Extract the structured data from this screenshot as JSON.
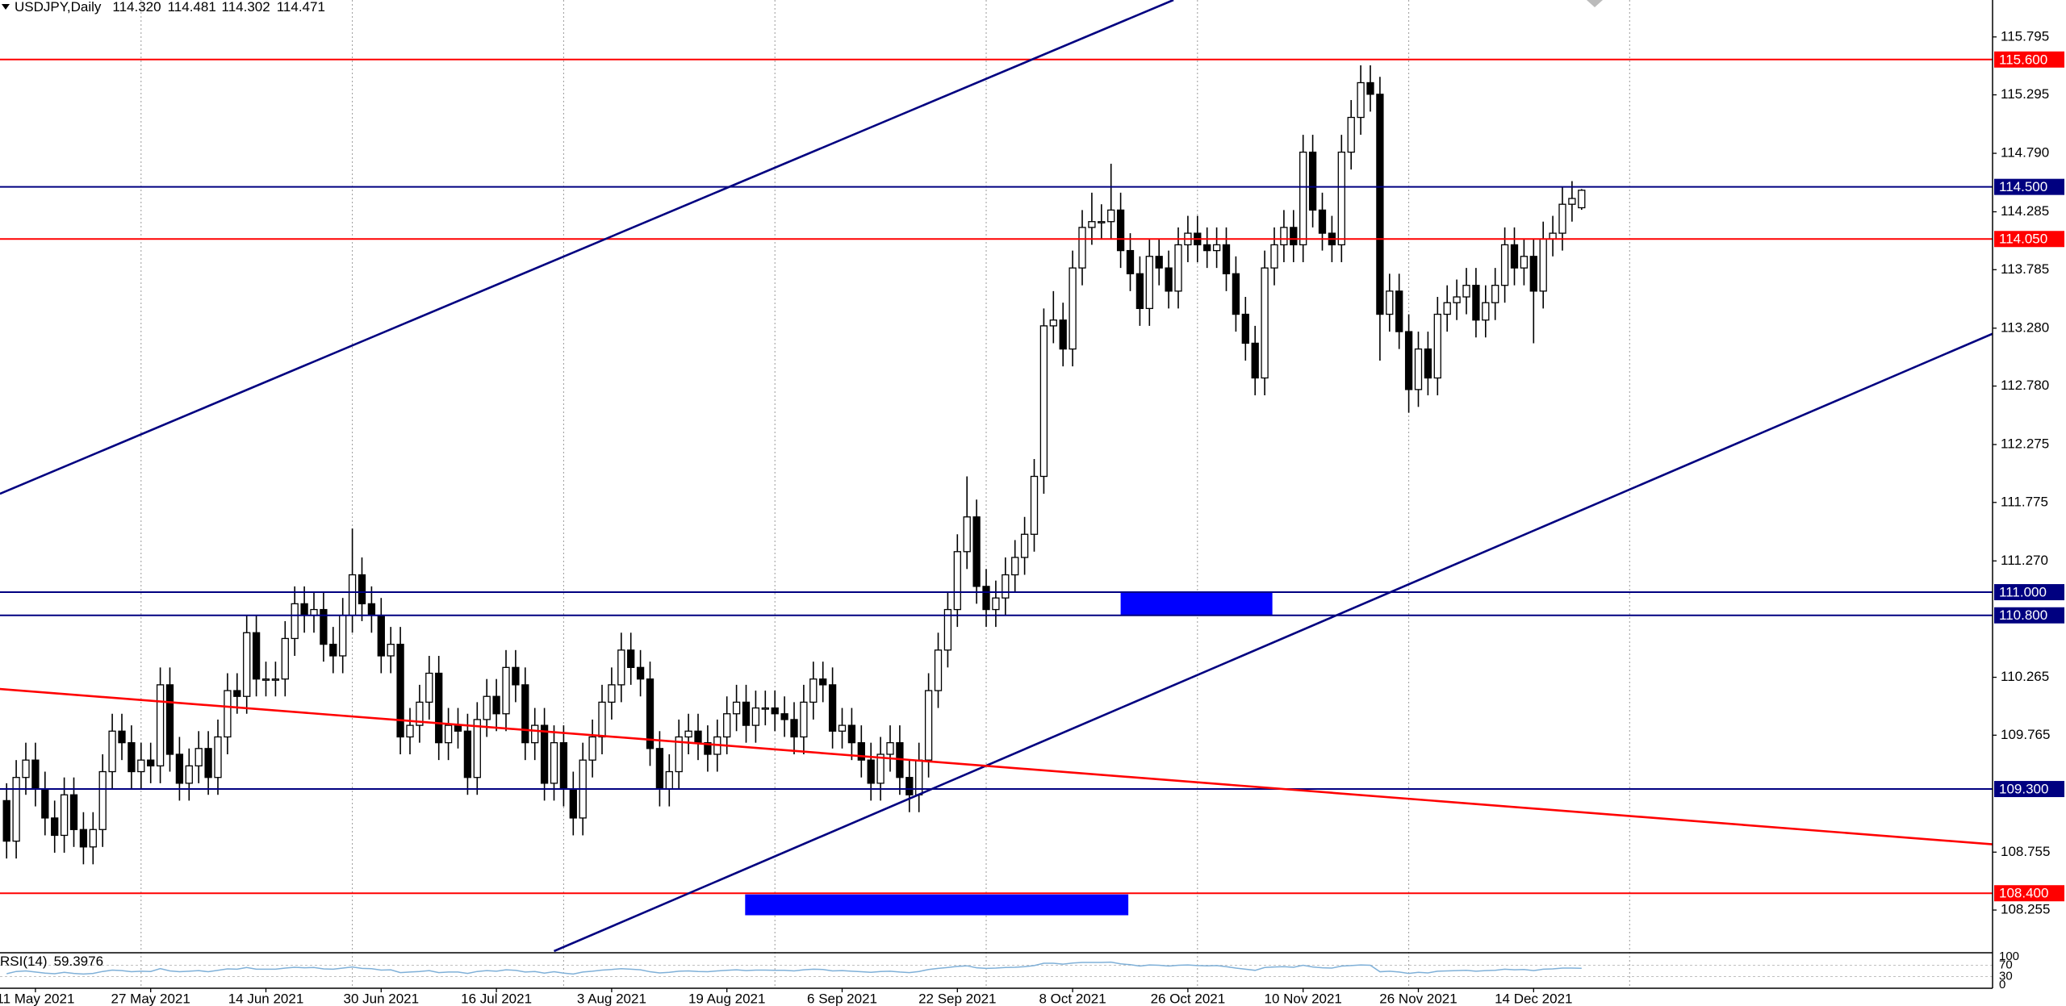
{
  "chart_data": [
    {
      "type": "candlestick",
      "title": "USDJPY,Daily",
      "ohlc_label": [
        "114.320",
        "114.481",
        "114.302",
        "114.471"
      ],
      "categories": [
        null,
        null,
        null,
        "11 May 2021",
        null,
        null,
        null,
        null,
        null,
        null,
        null,
        null,
        null,
        null,
        null,
        "27 May 2021",
        null,
        null,
        null,
        null,
        null,
        null,
        null,
        null,
        null,
        null,
        null,
        "14 Jun 2021",
        null,
        null,
        null,
        null,
        null,
        null,
        null,
        null,
        null,
        null,
        null,
        "30 Jun 2021",
        null,
        null,
        null,
        null,
        null,
        null,
        null,
        null,
        null,
        null,
        null,
        "16 Jul 2021",
        null,
        null,
        null,
        null,
        null,
        null,
        null,
        null,
        null,
        null,
        null,
        "3 Aug 2021",
        null,
        null,
        null,
        null,
        null,
        null,
        null,
        null,
        null,
        null,
        null,
        "19 Aug 2021",
        null,
        null,
        null,
        null,
        null,
        null,
        null,
        null,
        null,
        null,
        null,
        "6 Sep 2021",
        null,
        null,
        null,
        null,
        null,
        null,
        null,
        null,
        null,
        null,
        null,
        "22 Sep 2021",
        null,
        null,
        null,
        null,
        null,
        null,
        null,
        null,
        null,
        null,
        null,
        "8 Oct 2021",
        null,
        null,
        null,
        null,
        null,
        null,
        null,
        null,
        null,
        null,
        null,
        "26 Oct 2021",
        null,
        null,
        null,
        null,
        null,
        null,
        null,
        null,
        null,
        null,
        null,
        "10 Nov 2021",
        null,
        null,
        null,
        null,
        null,
        null,
        null,
        null,
        null,
        null,
        null,
        "26 Nov 2021",
        null,
        null,
        null,
        null,
        null,
        null,
        null,
        null,
        null,
        null,
        null,
        "14 Dec 2021",
        null,
        null,
        null,
        null,
        null
      ],
      "open": [
        109.2,
        108.85,
        109.4,
        109.55,
        109.3,
        109.05,
        108.9,
        109.25,
        108.95,
        108.8,
        108.95,
        109.45,
        109.8,
        109.7,
        109.45,
        109.55,
        109.5,
        110.2,
        109.6,
        109.35,
        109.5,
        109.65,
        109.4,
        109.75,
        110.15,
        110.1,
        110.65,
        110.25,
        110.25,
        110.25,
        110.6,
        110.9,
        110.8,
        110.85,
        110.55,
        110.45,
        110.8,
        111.15,
        110.9,
        110.8,
        110.45,
        110.55,
        109.75,
        109.85,
        110.05,
        110.3,
        109.7,
        109.85,
        109.8,
        109.4,
        109.9,
        110.1,
        109.95,
        110.35,
        110.2,
        109.7,
        109.85,
        109.35,
        109.7,
        109.3,
        109.05,
        109.55,
        109.75,
        110.05,
        110.2,
        110.5,
        110.35,
        110.25,
        109.65,
        109.3,
        109.45,
        109.75,
        109.8,
        109.7,
        109.6,
        109.75,
        109.95,
        110.05,
        109.85,
        110.0,
        110.0,
        109.95,
        109.9,
        109.75,
        110.05,
        110.25,
        110.2,
        109.8,
        109.85,
        109.7,
        109.55,
        109.35,
        109.6,
        109.7,
        109.4,
        109.25,
        109.55,
        110.15,
        110.5,
        110.85,
        111.35,
        111.65,
        111.05,
        110.85,
        110.95,
        111.15,
        111.3,
        111.5,
        112.0,
        113.3,
        113.35,
        113.1,
        113.8,
        114.15,
        114.2,
        114.2,
        114.3,
        113.95,
        113.75,
        113.45,
        113.9,
        113.8,
        113.6,
        114.0,
        114.1,
        114.0,
        113.95,
        114.0,
        113.75,
        113.4,
        113.15,
        112.85,
        113.8,
        114.0,
        114.15,
        114.0,
        114.8,
        114.3,
        114.1,
        114.0,
        114.8,
        115.1,
        115.4,
        115.3,
        113.4,
        113.6,
        113.25,
        112.75,
        113.1,
        112.85,
        113.4,
        113.5,
        113.55,
        113.65,
        113.35,
        113.5,
        113.65,
        114.0,
        113.8,
        113.9,
        113.6,
        114.05,
        114.1,
        114.35,
        114.32
      ],
      "high": [
        109.35,
        109.55,
        109.7,
        109.7,
        109.45,
        109.2,
        109.4,
        109.4,
        109.1,
        109.1,
        109.6,
        109.95,
        109.95,
        109.85,
        109.7,
        109.7,
        110.35,
        110.35,
        109.75,
        109.65,
        109.8,
        109.8,
        109.9,
        110.3,
        110.3,
        110.8,
        110.8,
        110.4,
        110.4,
        110.75,
        111.05,
        111.05,
        111.0,
        111.0,
        110.7,
        110.95,
        111.55,
        111.3,
        111.05,
        110.95,
        110.7,
        110.7,
        110.0,
        110.2,
        110.45,
        110.45,
        110.0,
        110.0,
        109.95,
        110.05,
        110.25,
        110.25,
        110.5,
        110.5,
        110.35,
        110.0,
        110.0,
        109.85,
        109.85,
        109.45,
        109.7,
        109.9,
        110.2,
        110.35,
        110.65,
        110.65,
        110.5,
        110.4,
        109.8,
        109.6,
        109.9,
        109.95,
        109.95,
        109.85,
        109.9,
        110.1,
        110.2,
        110.2,
        110.15,
        110.15,
        110.15,
        110.1,
        110.05,
        110.2,
        110.4,
        110.4,
        110.35,
        110.0,
        110.0,
        109.85,
        109.7,
        109.75,
        109.85,
        109.85,
        109.55,
        109.7,
        110.3,
        110.65,
        111.0,
        111.5,
        112.0,
        111.8,
        111.2,
        111.1,
        111.3,
        111.45,
        111.65,
        112.15,
        113.45,
        113.6,
        113.5,
        113.95,
        114.3,
        114.45,
        114.35,
        114.7,
        114.45,
        114.1,
        113.9,
        114.05,
        114.05,
        113.95,
        114.15,
        114.25,
        114.25,
        114.15,
        114.15,
        114.15,
        113.9,
        113.55,
        113.3,
        113.95,
        114.15,
        114.3,
        114.3,
        114.95,
        114.95,
        114.45,
        114.25,
        114.95,
        115.25,
        115.55,
        115.55,
        115.45,
        113.75,
        113.75,
        113.4,
        113.25,
        113.25,
        113.55,
        113.65,
        113.7,
        113.8,
        113.8,
        113.65,
        113.8,
        114.15,
        114.15,
        114.05,
        114.05,
        114.2,
        114.25,
        114.5,
        114.55,
        114.481
      ],
      "low": [
        108.7,
        108.7,
        109.25,
        109.15,
        108.9,
        108.75,
        108.75,
        108.8,
        108.65,
        108.65,
        108.8,
        109.3,
        109.55,
        109.3,
        109.3,
        109.35,
        109.35,
        109.45,
        109.2,
        109.2,
        109.35,
        109.25,
        109.25,
        109.6,
        109.95,
        109.95,
        110.1,
        110.1,
        110.1,
        110.1,
        110.45,
        110.65,
        110.65,
        110.4,
        110.3,
        110.3,
        110.65,
        110.75,
        110.65,
        110.3,
        110.3,
        109.6,
        109.6,
        109.7,
        109.9,
        109.55,
        109.55,
        109.65,
        109.25,
        109.25,
        109.75,
        109.8,
        109.8,
        110.05,
        109.55,
        109.55,
        109.2,
        109.2,
        109.15,
        108.9,
        108.9,
        109.4,
        109.6,
        109.9,
        110.05,
        110.2,
        110.1,
        109.5,
        109.15,
        109.15,
        109.3,
        109.6,
        109.55,
        109.45,
        109.45,
        109.6,
        109.8,
        109.7,
        109.7,
        109.85,
        109.8,
        109.75,
        109.6,
        109.6,
        109.9,
        110.05,
        109.65,
        109.65,
        109.55,
        109.4,
        109.2,
        109.2,
        109.45,
        109.25,
        109.1,
        109.1,
        109.4,
        110.0,
        110.35,
        110.7,
        111.2,
        110.9,
        110.7,
        110.7,
        110.8,
        111.0,
        111.15,
        111.35,
        111.85,
        113.15,
        112.95,
        112.95,
        113.65,
        114.0,
        114.05,
        114.05,
        113.8,
        113.6,
        113.3,
        113.3,
        113.65,
        113.45,
        113.45,
        113.85,
        113.85,
        113.8,
        113.8,
        113.6,
        113.25,
        113.0,
        112.7,
        112.7,
        113.65,
        113.85,
        113.85,
        113.85,
        114.15,
        113.95,
        113.85,
        113.85,
        114.65,
        114.95,
        115.15,
        113.0,
        113.25,
        113.1,
        112.55,
        112.6,
        112.7,
        112.7,
        113.25,
        113.35,
        113.4,
        113.2,
        113.2,
        113.35,
        113.5,
        113.65,
        113.65,
        113.15,
        113.45,
        113.9,
        113.95,
        114.2,
        114.302
      ],
      "close": [
        108.85,
        109.4,
        109.55,
        109.3,
        109.05,
        108.9,
        109.25,
        108.95,
        108.8,
        108.95,
        109.45,
        109.8,
        109.7,
        109.45,
        109.55,
        109.5,
        110.2,
        109.6,
        109.35,
        109.5,
        109.65,
        109.4,
        109.75,
        110.15,
        110.1,
        110.65,
        110.25,
        110.25,
        110.25,
        110.6,
        110.9,
        110.8,
        110.85,
        110.55,
        110.45,
        110.8,
        111.15,
        110.9,
        110.8,
        110.45,
        110.55,
        109.75,
        109.85,
        110.05,
        110.3,
        109.7,
        109.85,
        109.8,
        109.4,
        109.9,
        110.1,
        109.95,
        110.35,
        110.2,
        109.7,
        109.85,
        109.35,
        109.7,
        109.3,
        109.05,
        109.55,
        109.75,
        110.05,
        110.2,
        110.5,
        110.35,
        110.25,
        109.65,
        109.3,
        109.45,
        109.75,
        109.8,
        109.7,
        109.6,
        109.75,
        109.95,
        110.05,
        109.85,
        110.0,
        110.0,
        109.95,
        109.9,
        109.75,
        110.05,
        110.25,
        110.2,
        109.8,
        109.85,
        109.7,
        109.55,
        109.35,
        109.6,
        109.7,
        109.4,
        109.25,
        109.55,
        110.15,
        110.5,
        110.85,
        111.35,
        111.65,
        111.05,
        110.85,
        110.95,
        111.15,
        111.3,
        111.5,
        112.0,
        113.3,
        113.35,
        113.1,
        113.8,
        114.15,
        114.2,
        114.2,
        114.3,
        113.95,
        113.75,
        113.45,
        113.9,
        113.8,
        113.6,
        114.0,
        114.1,
        114.0,
        113.95,
        114.0,
        113.75,
        113.4,
        113.15,
        112.85,
        113.8,
        114.0,
        114.15,
        114.0,
        114.8,
        114.3,
        114.1,
        114.0,
        114.8,
        115.1,
        115.4,
        115.3,
        113.4,
        113.6,
        113.25,
        112.75,
        113.1,
        112.85,
        113.4,
        113.5,
        113.55,
        113.65,
        113.35,
        113.5,
        113.65,
        114.0,
        113.8,
        113.9,
        113.6,
        114.05,
        114.1,
        114.35,
        114.4,
        114.471
      ],
      "up_color": "#ffffff",
      "down_color": "#000000",
      "wick_color": "#000000",
      "ylim": [
        107.9,
        116.114
      ],
      "yticks": [
        115.795,
        115.295,
        {
          "value": 114.79,
          "label": "114.790"
        },
        114.285,
        113.785,
        {
          "value": 113.28,
          "label": "113.280"
        },
        {
          "value": 112.78,
          "label": "112.780"
        },
        112.275,
        111.775,
        {
          "value": 111.27,
          "label": "111.270"
        },
        110.265,
        109.765,
        108.755,
        108.255
      ],
      "xgrid": [
        14,
        36,
        58,
        80,
        102,
        124,
        146,
        169
      ],
      "levels": [
        {
          "value": 115.6,
          "label": "115.600",
          "color": "#ff0000"
        },
        {
          "value": 114.5,
          "label": "114.500",
          "color": "#000080"
        },
        {
          "value": 114.05,
          "label": "114.050",
          "color": "#ff0000"
        },
        {
          "value": 111,
          "label": "111.000",
          "color": "#000080"
        },
        {
          "value": 110.8,
          "label": "110.800",
          "color": "#000080"
        },
        {
          "value": 109.3,
          "label": "109.300",
          "color": "#000080"
        },
        {
          "value": 108.4,
          "label": "108.400",
          "color": "#ff0000"
        }
      ],
      "trendlines": [
        {
          "color": "#000080",
          "points": [
            [
              -0.7,
              111.85
            ],
            [
              121.5,
              116.114
            ]
          ]
        },
        {
          "color": "#000080",
          "points": [
            [
              57,
              107.9
            ],
            [
              206.9,
              113.236
            ]
          ]
        },
        {
          "color": "#ff0000",
          "points": [
            [
              -0.7,
              110.164
            ],
            [
              206.9,
              108.822
            ]
          ]
        }
      ],
      "zones": [
        {
          "color": "#0000ff",
          "x": [
            116,
            131.8
          ],
          "y": [
            110.8,
            111.0
          ]
        },
        {
          "color": "#0000ff",
          "x": [
            76.9,
            116.8
          ],
          "y": [
            108.21,
            108.39
          ]
        }
      ]
    },
    {
      "type": "line",
      "name": "RSI(14)",
      "color": "#7fb0d8",
      "values": [
        40,
        48,
        50,
        46,
        42,
        40,
        45,
        41,
        39,
        41,
        48,
        53,
        51,
        47,
        49,
        48,
        58,
        50,
        47,
        49,
        51,
        47,
        52,
        57,
        56,
        62,
        56,
        56,
        56,
        60,
        63,
        61,
        62,
        57,
        56,
        60,
        64,
        59,
        58,
        53,
        54,
        44,
        46,
        48,
        51,
        44,
        46,
        46,
        41,
        48,
        51,
        49,
        54,
        52,
        46,
        48,
        42,
        47,
        42,
        39,
        46,
        49,
        53,
        55,
        58,
        56,
        54,
        47,
        43,
        45,
        49,
        50,
        48,
        47,
        50,
        52,
        54,
        51,
        53,
        53,
        52,
        52,
        50,
        54,
        56,
        55,
        50,
        51,
        49,
        47,
        45,
        48,
        49,
        46,
        44,
        48,
        55,
        59,
        62,
        66,
        68,
        61,
        59,
        60,
        62,
        63,
        65,
        69,
        77,
        77,
        74,
        78,
        80,
        80,
        80,
        81,
        75,
        72,
        67,
        71,
        70,
        67,
        70,
        71,
        69,
        68,
        69,
        65,
        60,
        56,
        52,
        62,
        64,
        65,
        63,
        70,
        64,
        61,
        60,
        67,
        69,
        71,
        70,
        47,
        49,
        46,
        41,
        45,
        43,
        49,
        50,
        51,
        52,
        49,
        51,
        52,
        56,
        54,
        55,
        51,
        56,
        57,
        60,
        60,
        59.3976
      ],
      "ylim": [
        0,
        100
      ],
      "yticks": [
        100,
        70,
        30,
        0
      ]
    }
  ]
}
